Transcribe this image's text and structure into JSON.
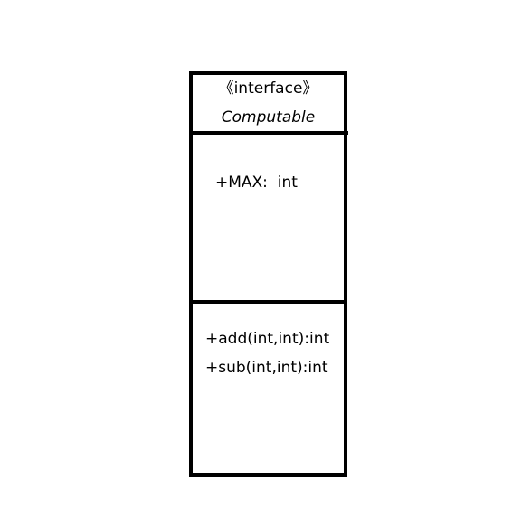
{
  "uml": {
    "stereotype": "《interface》",
    "name": "Computable",
    "attributes": [
      "+MAX:  int"
    ],
    "operations": [
      "+add(int,int):int",
      "+sub(int,int):int"
    ]
  }
}
